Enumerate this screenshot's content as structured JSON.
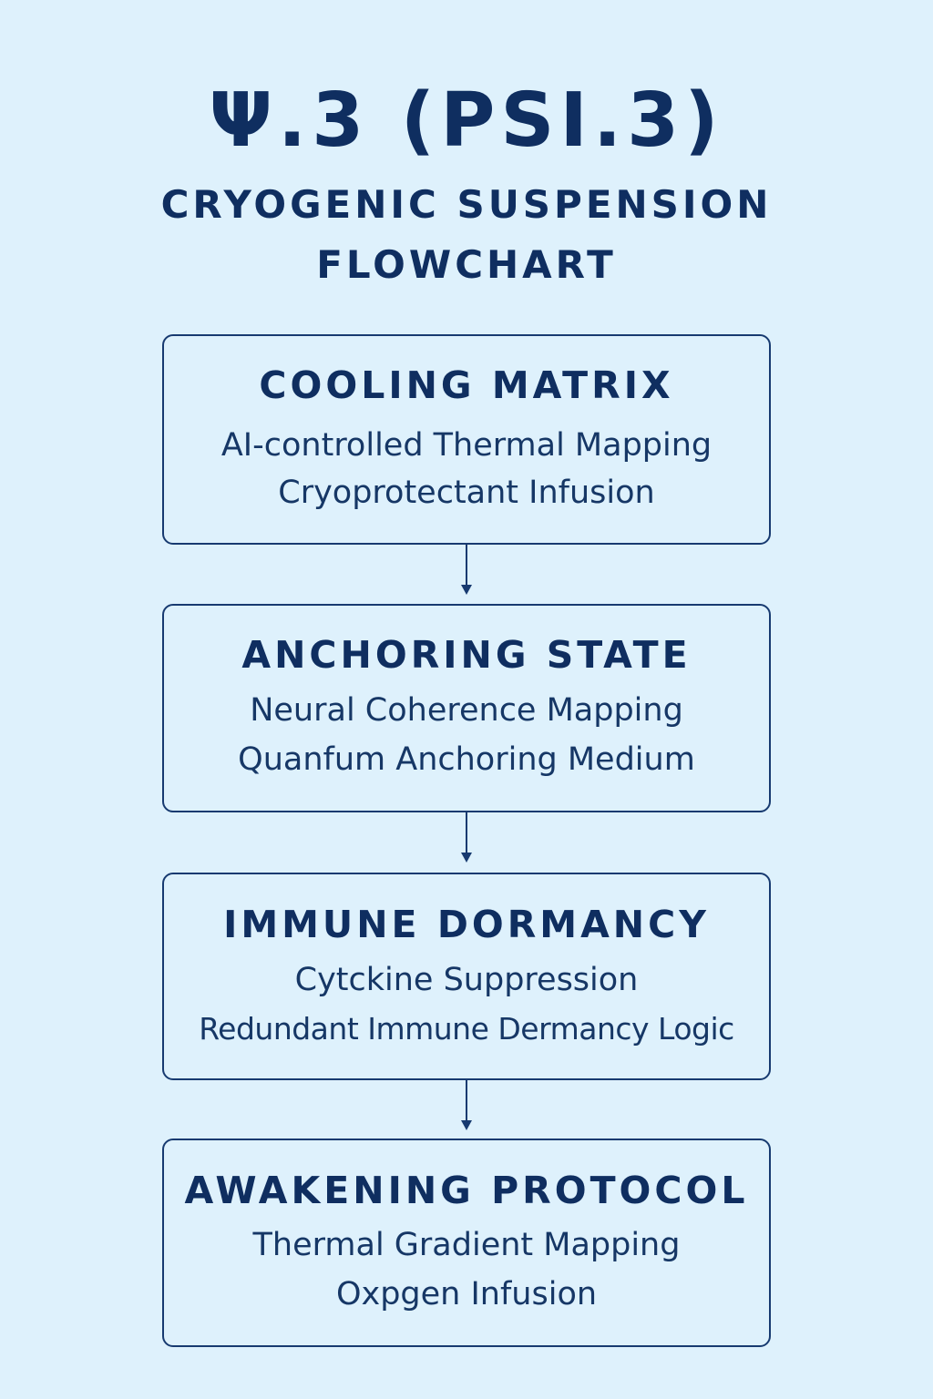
{
  "header": {
    "title": "Ψ.3 (PSI.3)",
    "subtitle_line1": "CRYOGENIC SUSPENSION",
    "subtitle_line2": "FLOWCHART"
  },
  "steps": [
    {
      "heading": "COOLING MATRIX",
      "lines": [
        "AI-controlled Thermal Mapping",
        "Cryoprotectant Infusion"
      ]
    },
    {
      "heading": "ANCHORING STATE",
      "lines": [
        "Neural Coherence Mapping",
        "Quanfum Anchoring Medium"
      ]
    },
    {
      "heading": "IMMUNE DORMANCY",
      "lines": [
        "Cytckine Suppression",
        "Redundant Immune Dermancy Logic"
      ]
    },
    {
      "heading": "AWAKENING PROTOCOL",
      "lines": [
        "Thermal Gradient Mapping",
        "Oxpgen Infusion"
      ]
    }
  ],
  "colors": {
    "background": "#def1fc",
    "ink": "#0f2e60",
    "border": "#173a70"
  },
  "icons": {
    "connector": "arrow-down-icon"
  }
}
